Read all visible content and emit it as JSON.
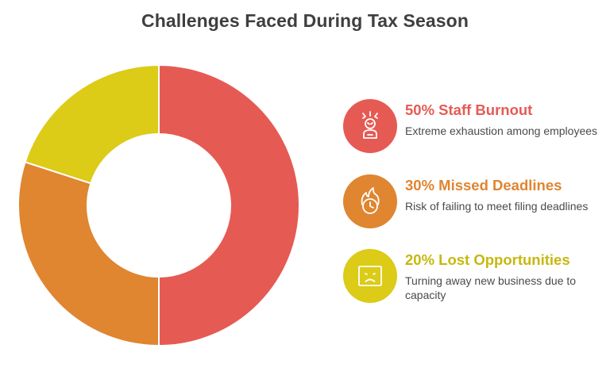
{
  "title": "Challenges Faced During Tax Season",
  "chart_data": {
    "type": "pie",
    "style": "donut",
    "title": "Challenges Faced During Tax Season",
    "categories": [
      "Staff Burnout",
      "Missed Deadlines",
      "Lost Opportunities"
    ],
    "values": [
      50,
      30,
      20
    ],
    "unit": "%",
    "colors": [
      "#e65a54",
      "#e08530",
      "#dccb17"
    ],
    "legend_placement": "right"
  },
  "legend": [
    {
      "heading": "50% Staff Burnout",
      "description": "Extreme exhaustion among employees",
      "icon": "stressed-person-icon",
      "color": "#e65a54"
    },
    {
      "heading": "30% Missed Deadlines",
      "description": "Risk of failing to meet filing deadlines",
      "icon": "burning-clock-icon",
      "color": "#e08530"
    },
    {
      "heading": "20% Lost Opportunities",
      "description": "Turning away new business due to capacity",
      "icon": "sad-face-icon",
      "color": "#dccb17"
    }
  ]
}
